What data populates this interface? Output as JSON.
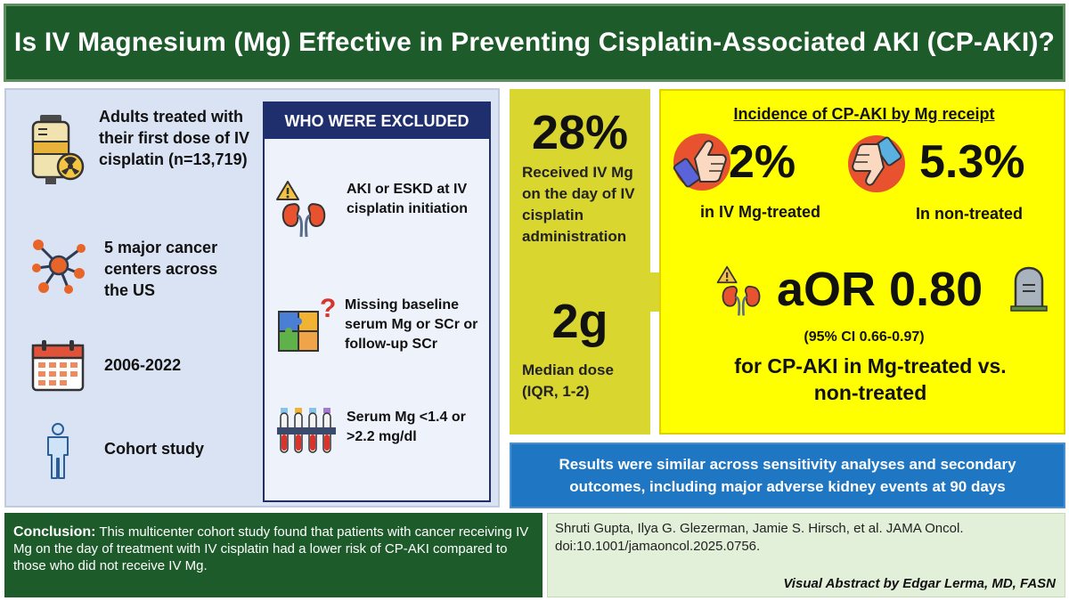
{
  "title": "Is IV Magnesium (Mg) Effective in Preventing Cisplatin-Associated AKI  (CP-AKI)?",
  "population": {
    "items": [
      {
        "icon": "iv-bag-icon",
        "text": "Adults treated with their first dose of IV cisplatin (n=13,719)"
      },
      {
        "icon": "network-icon",
        "text": "5 major cancer centers across the US"
      },
      {
        "icon": "calendar-icon",
        "text": "2006-2022"
      },
      {
        "icon": "person-icon",
        "text": "Cohort study"
      }
    ]
  },
  "excluded": {
    "header": "WHO WERE EXCLUDED",
    "items": [
      {
        "icon": "kidney-warning-icon",
        "text": "AKI or ESKD at IV cisplatin initiation"
      },
      {
        "icon": "puzzle-icon",
        "text": "Missing baseline serum Mg or SCr or follow-up SCr"
      },
      {
        "icon": "test-tubes-icon",
        "text": "Serum Mg <1.4 or >2.2 mg/dl"
      }
    ]
  },
  "mg_receipt": {
    "percent": "28%",
    "percent_text": "Received IV Mg on the day of IV cisplatin administration",
    "dose": "2g",
    "dose_text": "Median dose (IQR, 1-2)"
  },
  "results": {
    "incidence_title": "Incidence of CP-AKI by Mg receipt",
    "treated_value": "2%",
    "treated_label": "in IV Mg-treated",
    "untreated_value": "5.3%",
    "untreated_label": "In non-treated",
    "aor": "aOR 0.80",
    "ci": "(95% CI 0.66-0.97)",
    "aor_desc": "for CP-AKI in Mg-treated vs. non-treated"
  },
  "secondary": "Results were similar across sensitivity analyses and secondary outcomes, including major adverse kidney events at 90 days",
  "conclusion": {
    "label": "Conclusion:",
    "text": " This multicenter cohort study found that patients with cancer receiving IV Mg on the day of treatment with IV cisplatin had a lower risk of CP-AKI compared to those who did not receive IV Mg."
  },
  "citation": "Shruti Gupta, Ilya G. Glezerman, Jamie S. Hirsch, et al. JAMA Oncol. doi:10.1001/jamaoncol.2025.0756.",
  "credit": "Visual Abstract by Edgar Lerma, MD, FASN",
  "colors": {
    "title_green": "#1e5b2b",
    "left_blue": "#dae3f3",
    "navy": "#1f2f6e",
    "olive": "#d9d62f",
    "yellow": "#ffff00",
    "blue_banner": "#1f77c3",
    "light_green": "#e2f0d9"
  }
}
